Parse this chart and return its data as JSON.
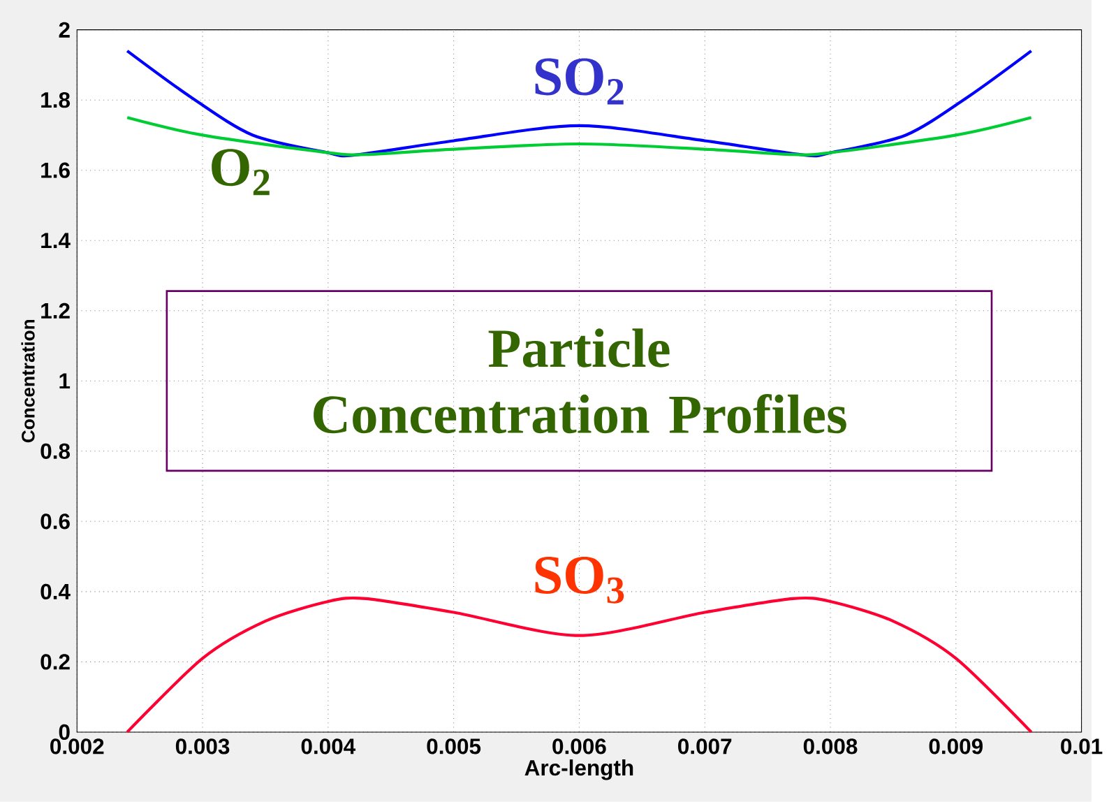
{
  "chart_data": {
    "type": "line",
    "title": "Particle Concentration Profiles",
    "xlabel": "Arc-length",
    "ylabel": "Concentration",
    "xlim": [
      0.002,
      0.01
    ],
    "ylim": [
      0,
      2
    ],
    "xticks": [
      0.002,
      0.003,
      0.004,
      0.005,
      0.006,
      0.007,
      0.008,
      0.009,
      0.01
    ],
    "yticks": [
      0,
      0.2,
      0.4,
      0.6,
      0.8,
      1,
      1.2,
      1.4,
      1.6,
      1.8,
      2
    ],
    "grid": true,
    "line_style": "solid",
    "marker": "none",
    "series": [
      {
        "name": "SO$_{2}$",
        "color": "#0000ff",
        "x": [
          0.0024,
          0.0029,
          0.0034,
          0.004,
          0.0042,
          0.005,
          0.006,
          0.007,
          0.0078,
          0.008,
          0.0086,
          0.0091,
          0.0096
        ],
        "values": [
          1.94,
          1.81,
          1.7,
          1.65,
          1.643,
          1.684,
          1.727,
          1.684,
          1.643,
          1.65,
          1.7,
          1.81,
          1.94
        ]
      },
      {
        "name": "O$_{2}$",
        "color": "#00cc33",
        "x": [
          0.0024,
          0.003,
          0.004,
          0.0043,
          0.005,
          0.006,
          0.007,
          0.0077,
          0.008,
          0.009,
          0.0096
        ],
        "values": [
          1.75,
          1.7,
          1.65,
          1.645,
          1.66,
          1.675,
          1.66,
          1.645,
          1.65,
          1.7,
          1.75
        ]
      },
      {
        "name": "SO$_{3}$",
        "color": "#ff0033",
        "x": [
          0.0024,
          0.003,
          0.0035,
          0.004,
          0.0043,
          0.005,
          0.006,
          0.007,
          0.0077,
          0.008,
          0.0085,
          0.009,
          0.0096
        ],
        "values": [
          0,
          0.21,
          0.316,
          0.372,
          0.38,
          0.341,
          0.275,
          0.341,
          0.38,
          0.372,
          0.316,
          0.21,
          0
        ]
      }
    ]
  }
}
